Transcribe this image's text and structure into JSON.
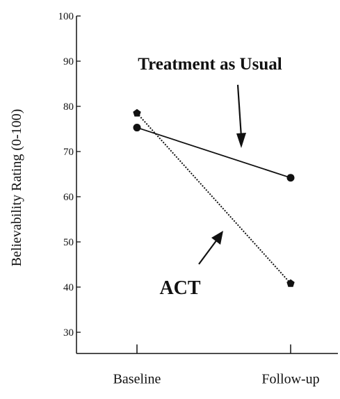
{
  "chart_data": {
    "type": "line",
    "categories": [
      "Baseline",
      "Follow-up"
    ],
    "series": [
      {
        "values": [
          75.3,
          64.2
        ],
        "style": "solid",
        "marker": "circle",
        "color": "#111111"
      },
      {
        "values": [
          78.5,
          40.8
        ],
        "style": "dotted",
        "marker": "pentagon",
        "color": "#111111"
      }
    ],
    "ylabel": "Believability Rating (0-100)",
    "ylim": [
      25,
      100
    ],
    "yticks": [
      30,
      40,
      50,
      60,
      70,
      80,
      90,
      100
    ],
    "annotations": [
      {
        "text": "Treatment as Usual",
        "series_index": 0
      },
      {
        "text": "ACT",
        "series_index": 1
      }
    ],
    "grid": false
  }
}
